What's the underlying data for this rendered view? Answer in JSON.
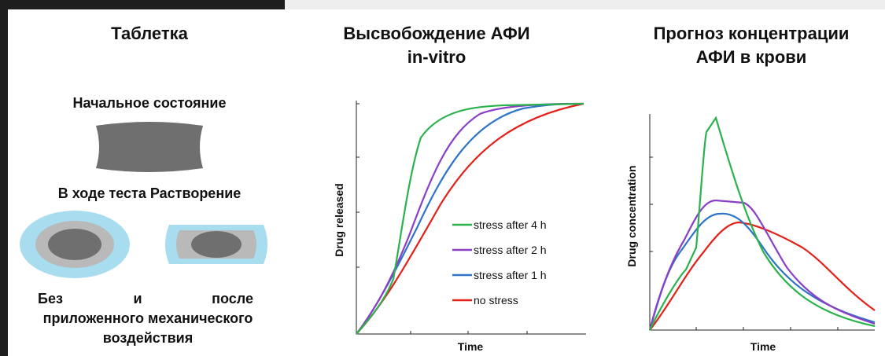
{
  "panels": [
    {
      "title": "Таблетка",
      "initial_label": "Начальное состояние",
      "during_label": "В ходе теста Растворение",
      "caption": {
        "words": [
          "Без",
          "и",
          "после"
        ],
        "line2": "приложенного механического",
        "line3": "воздействия"
      }
    },
    {
      "title_lines": [
        "Высвобождение АФИ",
        "in-vitro"
      ],
      "y_label": "Drug released",
      "x_label": "Time",
      "legend": [
        "stress after 4 h",
        "stress after 2 h",
        "stress after 1 h",
        "no stress"
      ]
    },
    {
      "title_lines": [
        "Прогноз концентрации",
        "АФИ в крови"
      ],
      "y_label": "Drug concentration",
      "x_label": "Time"
    }
  ]
}
